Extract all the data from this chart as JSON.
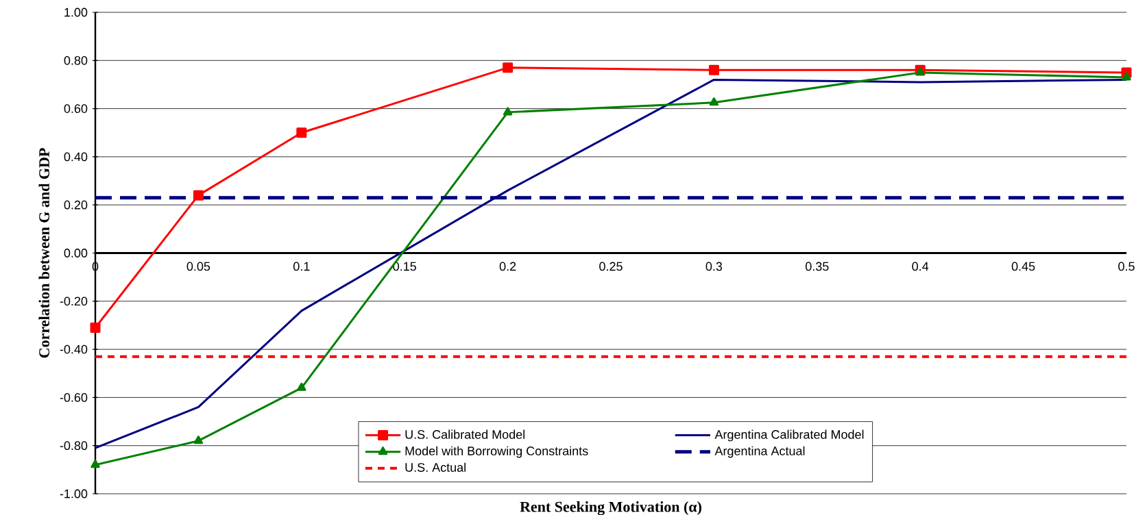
{
  "chart_data": {
    "type": "line",
    "xlabel": "Rent Seeking Motivation (α)",
    "ylabel": "Correlation between G and GDP",
    "series": [
      {
        "name": "U.S. Calibrated Model",
        "color": "#ff0000",
        "marker": "square",
        "x": [
          0,
          0.05,
          0.1,
          0.2,
          0.3,
          0.4,
          0.5
        ],
        "values": [
          -0.31,
          0.24,
          0.5,
          0.77,
          0.76,
          0.76,
          0.75
        ]
      },
      {
        "name": "Argentina Calibrated Model",
        "color": "#000080",
        "marker": "none",
        "x": [
          0,
          0.05,
          0.1,
          0.2,
          0.3,
          0.4,
          0.5
        ],
        "values": [
          -0.81,
          -0.64,
          -0.24,
          0.26,
          0.72,
          0.71,
          0.72
        ]
      },
      {
        "name": "Model with Borrowing Constraints",
        "color": "#008000",
        "marker": "triangle",
        "x": [
          0,
          0.05,
          0.1,
          0.2,
          0.3,
          0.4,
          0.5
        ],
        "values": [
          -0.88,
          -0.78,
          -0.56,
          0.585,
          0.625,
          0.75,
          0.73
        ]
      }
    ],
    "ref_lines": [
      {
        "axis": "y",
        "value": 0.23,
        "label": "Argentina Actual",
        "color": "#000080",
        "line_style": "dashed"
      },
      {
        "axis": "y",
        "value": -0.43,
        "label": "U.S. Actual",
        "color": "#ff0000",
        "line_style": "dotted"
      }
    ],
    "xlim": [
      0,
      0.5
    ],
    "xticks": [
      {
        "value": 0,
        "label": "0"
      },
      {
        "value": 0.05,
        "label": "0.05"
      },
      {
        "value": 0.1,
        "label": "0.1"
      },
      {
        "value": 0.15,
        "label": "0.15"
      },
      {
        "value": 0.2,
        "label": "0.2"
      },
      {
        "value": 0.25,
        "label": "0.25"
      },
      {
        "value": 0.3,
        "label": "0.3"
      },
      {
        "value": 0.35,
        "label": "0.35"
      },
      {
        "value": 0.4,
        "label": "0.4"
      },
      {
        "value": 0.45,
        "label": "0.45"
      },
      {
        "value": 0.5,
        "label": "0.5"
      }
    ],
    "ylim": [
      -1,
      1
    ],
    "yticks": [
      {
        "value": -1,
        "label": "-1.00"
      },
      {
        "value": -0.8,
        "label": "-0.80"
      },
      {
        "value": -0.6,
        "label": "-0.60"
      },
      {
        "value": -0.4,
        "label": "-0.40"
      },
      {
        "value": -0.2,
        "label": "-0.20"
      },
      {
        "value": 0,
        "label": "0.00"
      },
      {
        "value": 0.2,
        "label": "0.20"
      },
      {
        "value": 0.4,
        "label": "0.40"
      },
      {
        "value": 0.6,
        "label": "0.60"
      },
      {
        "value": 0.8,
        "label": "0.80"
      },
      {
        "value": 1,
        "label": "1.00"
      }
    ],
    "grid": "y",
    "legend": "bottom right"
  }
}
